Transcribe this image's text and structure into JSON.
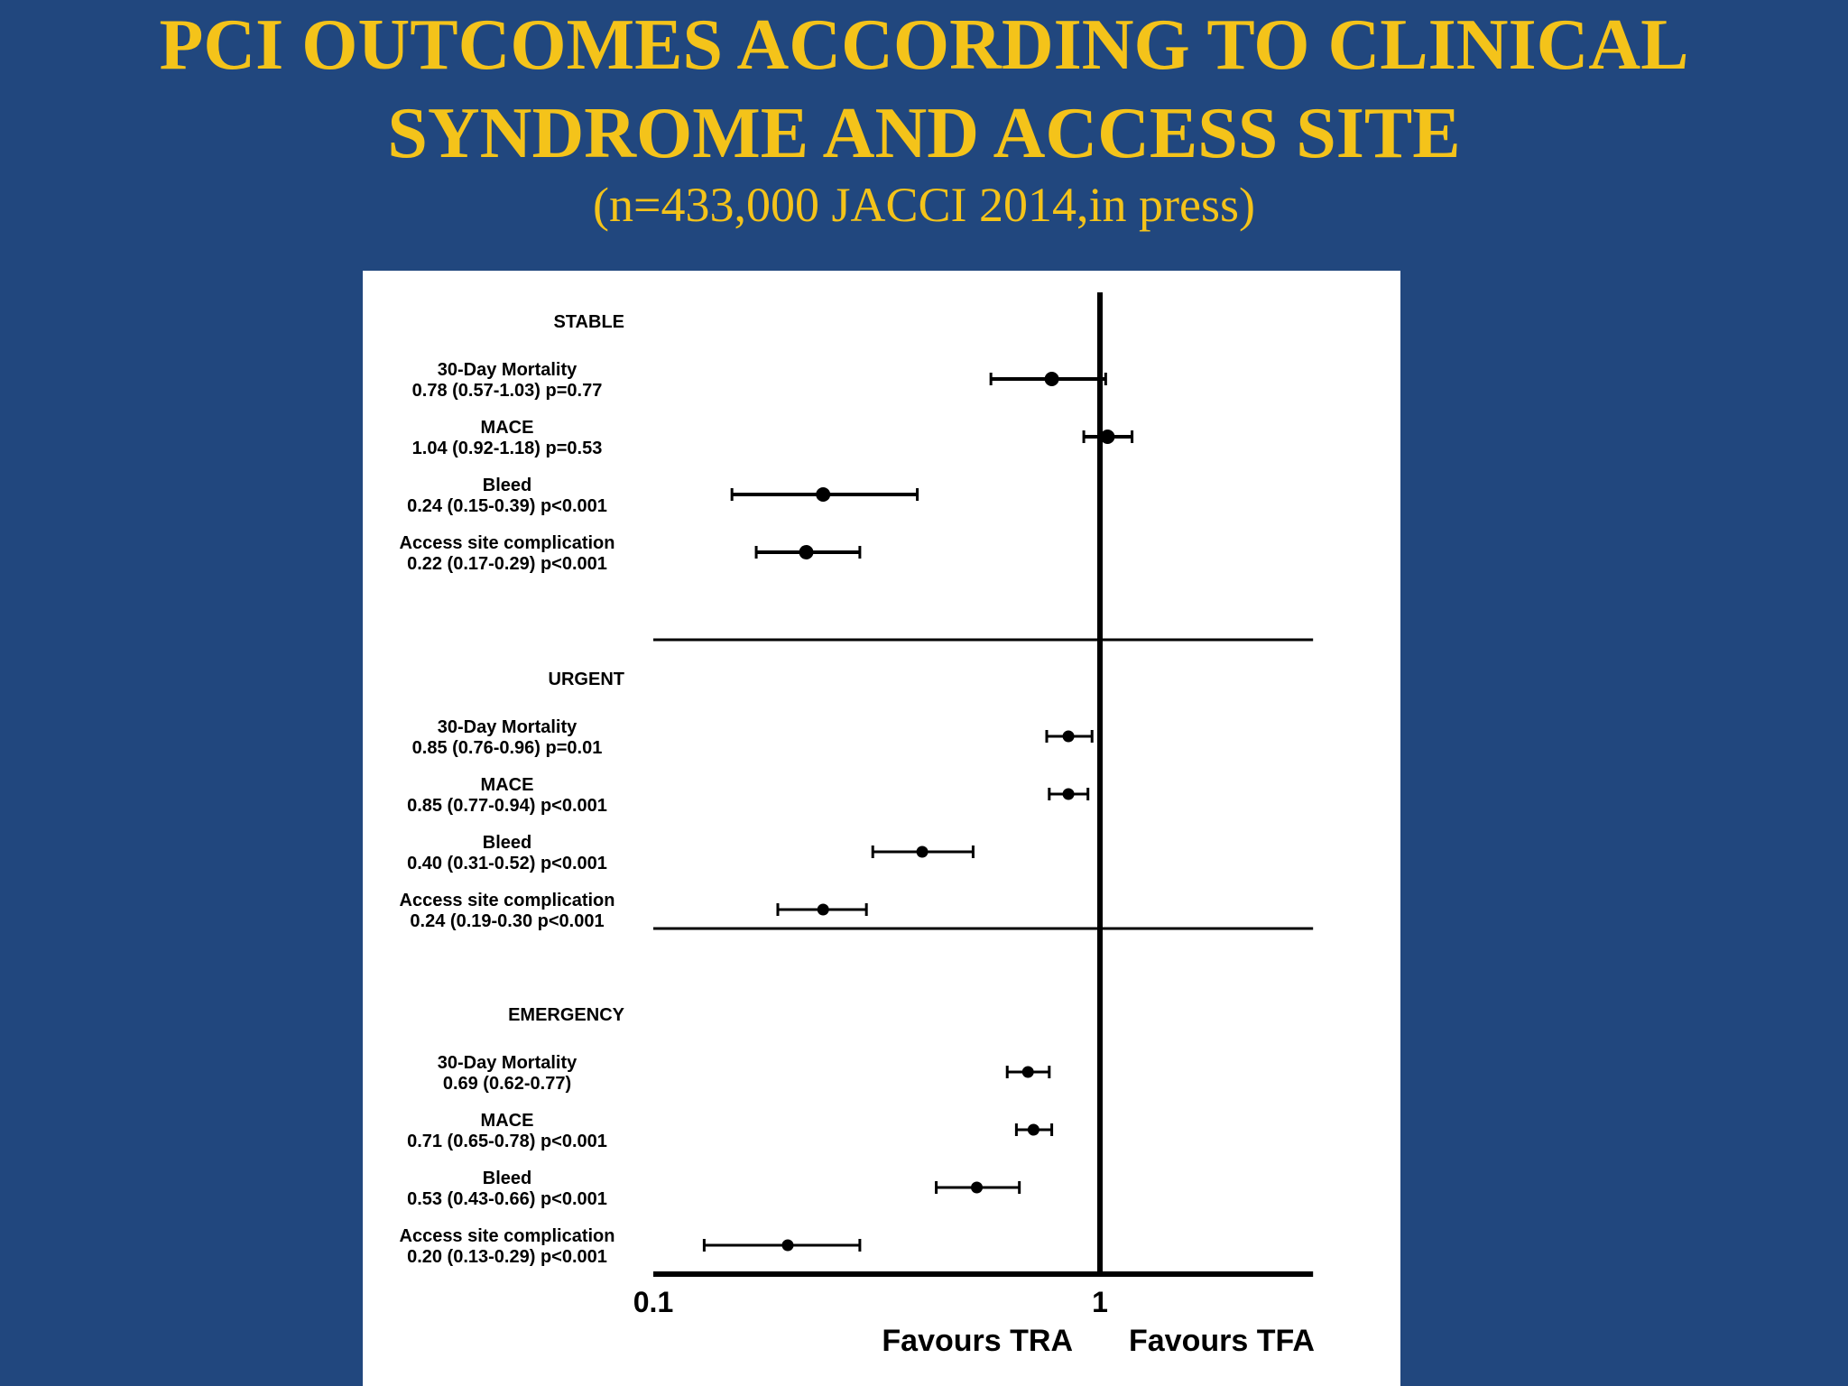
{
  "slide": {
    "title_line1": "PCI OUTCOMES ACCORDING TO CLINICAL",
    "title_line2": "SYNDROME AND ACCESS SITE",
    "subtitle": "(n=433,000 JACCI 2014,in press)"
  },
  "colors": {
    "background": "#21477e",
    "title": "#f4c31a",
    "panel": "#ffffff",
    "marks": "#000000"
  },
  "chart_data": {
    "type": "forest",
    "scale": "log",
    "xlim": [
      0.1,
      3
    ],
    "reference_value": 1,
    "x_ticks": [
      "0.1",
      "1"
    ],
    "direction_labels": {
      "left": "Favours TRA",
      "right": "Favours TFA"
    },
    "groups": [
      {
        "name": "STABLE",
        "items": [
          {
            "label": "30-Day Mortality",
            "stats": "0.78 (0.57-1.03) p=0.77",
            "estimate": 0.78,
            "lower": 0.57,
            "upper": 1.03
          },
          {
            "label": "MACE",
            "stats": "1.04 (0.92-1.18) p=0.53",
            "estimate": 1.04,
            "lower": 0.92,
            "upper": 1.18
          },
          {
            "label": "Bleed",
            "stats": "0.24 (0.15-0.39) p<0.001",
            "estimate": 0.24,
            "lower": 0.15,
            "upper": 0.39
          },
          {
            "label": "Access site complication",
            "stats": "0.22 (0.17-0.29) p<0.001",
            "estimate": 0.22,
            "lower": 0.17,
            "upper": 0.29
          }
        ]
      },
      {
        "name": "URGENT",
        "items": [
          {
            "label": "30-Day Mortality",
            "stats": "0.85 (0.76-0.96) p=0.01",
            "estimate": 0.85,
            "lower": 0.76,
            "upper": 0.96
          },
          {
            "label": "MACE",
            "stats": "0.85 (0.77-0.94) p<0.001",
            "estimate": 0.85,
            "lower": 0.77,
            "upper": 0.94
          },
          {
            "label": "Bleed",
            "stats": "0.40 (0.31-0.52) p<0.001",
            "estimate": 0.4,
            "lower": 0.31,
            "upper": 0.52
          },
          {
            "label": "Access site complication",
            "stats": "0.24 (0.19-0.30 p<0.001",
            "estimate": 0.24,
            "lower": 0.19,
            "upper": 0.3
          }
        ]
      },
      {
        "name": "EMERGENCY",
        "items": [
          {
            "label": "30-Day Mortality",
            "stats": "0.69 (0.62-0.77)",
            "estimate": 0.69,
            "lower": 0.62,
            "upper": 0.77
          },
          {
            "label": "MACE",
            "stats": "0.71 (0.65-0.78) p<0.001",
            "estimate": 0.71,
            "lower": 0.65,
            "upper": 0.78
          },
          {
            "label": "Bleed",
            "stats": "0.53 (0.43-0.66) p<0.001",
            "estimate": 0.53,
            "lower": 0.43,
            "upper": 0.66
          },
          {
            "label": "Access site complication",
            "stats": "0.20 (0.13-0.29) p<0.001",
            "estimate": 0.2,
            "lower": 0.13,
            "upper": 0.29
          }
        ]
      }
    ]
  }
}
